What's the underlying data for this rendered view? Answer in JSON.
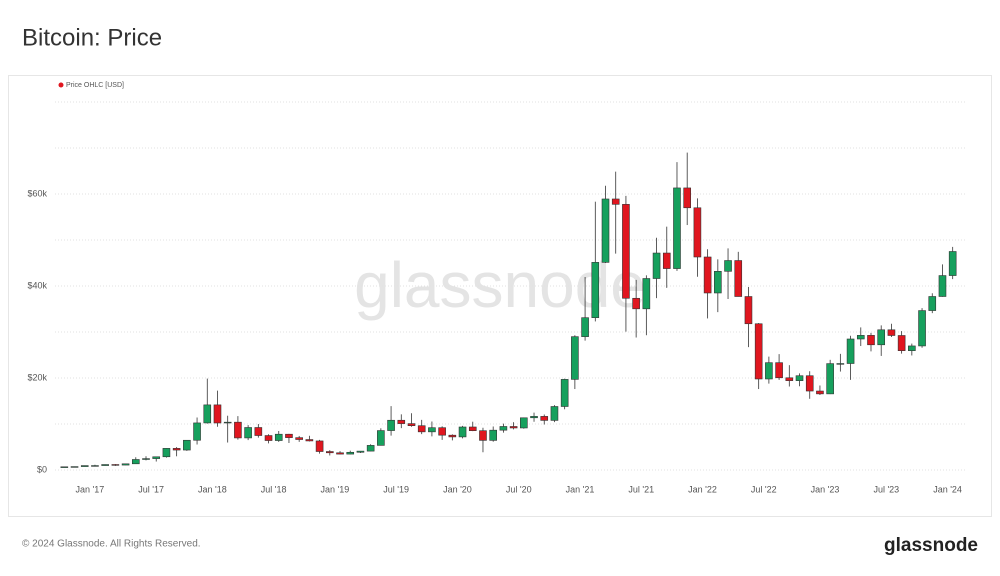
{
  "header": {
    "title": "Bitcoin: Price"
  },
  "footer": {
    "copyright": "© 2024 Glassnode. All Rights Reserved.",
    "logo": "glassnode"
  },
  "chart_data": {
    "type": "candlestick",
    "watermark": "glassnode",
    "legend": "top-left",
    "grid": true,
    "ylim": [
      0,
      80000
    ],
    "yticks": [
      {
        "value": 0,
        "label": "$0"
      },
      {
        "value": 20000,
        "label": "$20k"
      },
      {
        "value": 40000,
        "label": "$40k"
      },
      {
        "value": 60000,
        "label": "$60k"
      }
    ],
    "minor_yticks": [
      10000,
      30000,
      50000,
      70000,
      80000
    ],
    "xlim": [
      "2016-09",
      "2024-03"
    ],
    "xticks": [
      {
        "value": "2017-01",
        "label": "Jan '17"
      },
      {
        "value": "2017-07",
        "label": "Jul '17"
      },
      {
        "value": "2018-01",
        "label": "Jan '18"
      },
      {
        "value": "2018-07",
        "label": "Jul '18"
      },
      {
        "value": "2019-01",
        "label": "Jan '19"
      },
      {
        "value": "2019-07",
        "label": "Jul '19"
      },
      {
        "value": "2020-01",
        "label": "Jan '20"
      },
      {
        "value": "2020-07",
        "label": "Jul '20"
      },
      {
        "value": "2021-01",
        "label": "Jan '21"
      },
      {
        "value": "2021-07",
        "label": "Jul '21"
      },
      {
        "value": "2022-01",
        "label": "Jan '22"
      },
      {
        "value": "2022-07",
        "label": "Jul '22"
      },
      {
        "value": "2023-01",
        "label": "Jan '23"
      },
      {
        "value": "2023-07",
        "label": "Jul '23"
      },
      {
        "value": "2024-01",
        "label": "Jan '24"
      }
    ],
    "x": [
      "2016-10",
      "2016-11",
      "2016-12",
      "2017-01",
      "2017-02",
      "2017-03",
      "2017-04",
      "2017-05",
      "2017-06",
      "2017-07",
      "2017-08",
      "2017-09",
      "2017-10",
      "2017-11",
      "2017-12",
      "2018-01",
      "2018-02",
      "2018-03",
      "2018-04",
      "2018-05",
      "2018-06",
      "2018-07",
      "2018-08",
      "2018-09",
      "2018-10",
      "2018-11",
      "2018-12",
      "2019-01",
      "2019-02",
      "2019-03",
      "2019-04",
      "2019-05",
      "2019-06",
      "2019-07",
      "2019-08",
      "2019-09",
      "2019-10",
      "2019-11",
      "2019-12",
      "2020-01",
      "2020-02",
      "2020-03",
      "2020-04",
      "2020-05",
      "2020-06",
      "2020-07",
      "2020-08",
      "2020-09",
      "2020-10",
      "2020-11",
      "2020-12",
      "2021-01",
      "2021-02",
      "2021-03",
      "2021-04",
      "2021-05",
      "2021-06",
      "2021-07",
      "2021-08",
      "2021-09",
      "2021-10",
      "2021-11",
      "2021-12",
      "2022-01",
      "2022-02",
      "2022-03",
      "2022-04",
      "2022-05",
      "2022-06",
      "2022-07",
      "2022-08",
      "2022-09",
      "2022-10",
      "2022-11",
      "2022-12",
      "2023-01",
      "2023-02",
      "2023-03",
      "2023-04",
      "2023-05",
      "2023-06",
      "2023-07",
      "2023-08",
      "2023-09",
      "2023-10",
      "2023-11",
      "2023-12",
      "2024-01"
    ],
    "series": [
      {
        "name": "Price OHLC [USD]",
        "color": "#e0161f",
        "up_color": "#16a05d",
        "down_color": "#e0161f",
        "open": [
          609,
          698,
          742,
          964,
          965,
          1190,
          1071,
          1347,
          2286,
          2480,
          2875,
          4703,
          4338,
          6468,
          10233,
          14156,
          10221,
          10397,
          6973,
          9240,
          7494,
          6404,
          7780,
          7037,
          6625,
          6318,
          4017,
          3743,
          3457,
          3854,
          4105,
          5350,
          8574,
          10817,
          10085,
          9630,
          8293,
          9199,
          7569,
          7193,
          9350,
          8544,
          6438,
          8658,
          9461,
          9137,
          11351,
          11656,
          10779,
          13804,
          19698,
          28990,
          33114,
          45137,
          58918,
          57750,
          37332,
          35040,
          41626,
          47166,
          43790,
          61318,
          57005,
          46306,
          38483,
          43194,
          45538,
          37714,
          31792,
          19785,
          23336,
          20050,
          19423,
          20496,
          17168,
          16548,
          23130,
          23150,
          28480,
          29270,
          27220,
          30480,
          29240,
          25940,
          26970,
          34660,
          37720,
          42270
        ],
        "high": [
          740,
          754,
          979,
          1140,
          1210,
          1290,
          1350,
          2770,
          3000,
          2930,
          4740,
          4980,
          6470,
          11420,
          19870,
          17250,
          11800,
          11700,
          9760,
          9990,
          7760,
          8480,
          7860,
          7400,
          7440,
          6550,
          4310,
          4110,
          4200,
          4130,
          5600,
          9070,
          13880,
          12100,
          12330,
          10900,
          10540,
          9500,
          7750,
          9580,
          10500,
          9190,
          9460,
          10080,
          10390,
          11420,
          12470,
          12060,
          14100,
          19860,
          29300,
          41950,
          58330,
          61790,
          64860,
          59600,
          41330,
          42320,
          50500,
          52900,
          66930,
          69000,
          59040,
          47990,
          45800,
          48190,
          47430,
          39790,
          31950,
          24650,
          25200,
          22790,
          21000,
          21470,
          18370,
          23950,
          25250,
          29190,
          31000,
          29820,
          31440,
          31800,
          30200,
          27480,
          35200,
          38420,
          44700,
          48500
        ],
        "low": [
          604,
          687,
          741,
          755,
          947,
          893,
          1060,
          1340,
          2100,
          1840,
          2700,
          2980,
          4160,
          5530,
          10080,
          9400,
          5970,
          6600,
          6500,
          7040,
          5780,
          6110,
          5880,
          6120,
          6200,
          3550,
          3160,
          3400,
          3390,
          3700,
          4070,
          5330,
          7460,
          9100,
          9400,
          7800,
          7300,
          6550,
          6440,
          6870,
          8450,
          3850,
          6150,
          8120,
          8830,
          8980,
          10500,
          9880,
          10400,
          13200,
          17600,
          28130,
          32300,
          45000,
          47040,
          30070,
          28800,
          29300,
          37360,
          39600,
          43300,
          53250,
          42000,
          32950,
          34320,
          37170,
          37700,
          26700,
          17600,
          18780,
          19600,
          18150,
          18200,
          15480,
          16300,
          16500,
          21400,
          19600,
          26950,
          25800,
          24800,
          28900,
          25300,
          24900,
          26570,
          34100,
          37650,
          41500
        ],
        "close": [
          698,
          742,
          964,
          965,
          1190,
          1071,
          1347,
          2286,
          2480,
          2875,
          4703,
          4338,
          6468,
          10233,
          14156,
          10221,
          10397,
          6973,
          9240,
          7494,
          6404,
          7780,
          7037,
          6625,
          6318,
          4017,
          3743,
          3457,
          3854,
          4105,
          5350,
          8574,
          10817,
          10085,
          9630,
          8293,
          9199,
          7569,
          7193,
          9350,
          8544,
          6438,
          8658,
          9461,
          9137,
          11351,
          11656,
          10779,
          13804,
          19698,
          28990,
          33114,
          45137,
          58918,
          57750,
          37332,
          35040,
          41626,
          47166,
          43790,
          61318,
          57005,
          46306,
          38483,
          43194,
          45538,
          37714,
          31792,
          19785,
          23336,
          20050,
          19423,
          20496,
          17168,
          16548,
          23130,
          23150,
          28480,
          29270,
          27220,
          30480,
          29240,
          25940,
          26970,
          34660,
          37720,
          42270,
          47500
        ]
      }
    ]
  }
}
